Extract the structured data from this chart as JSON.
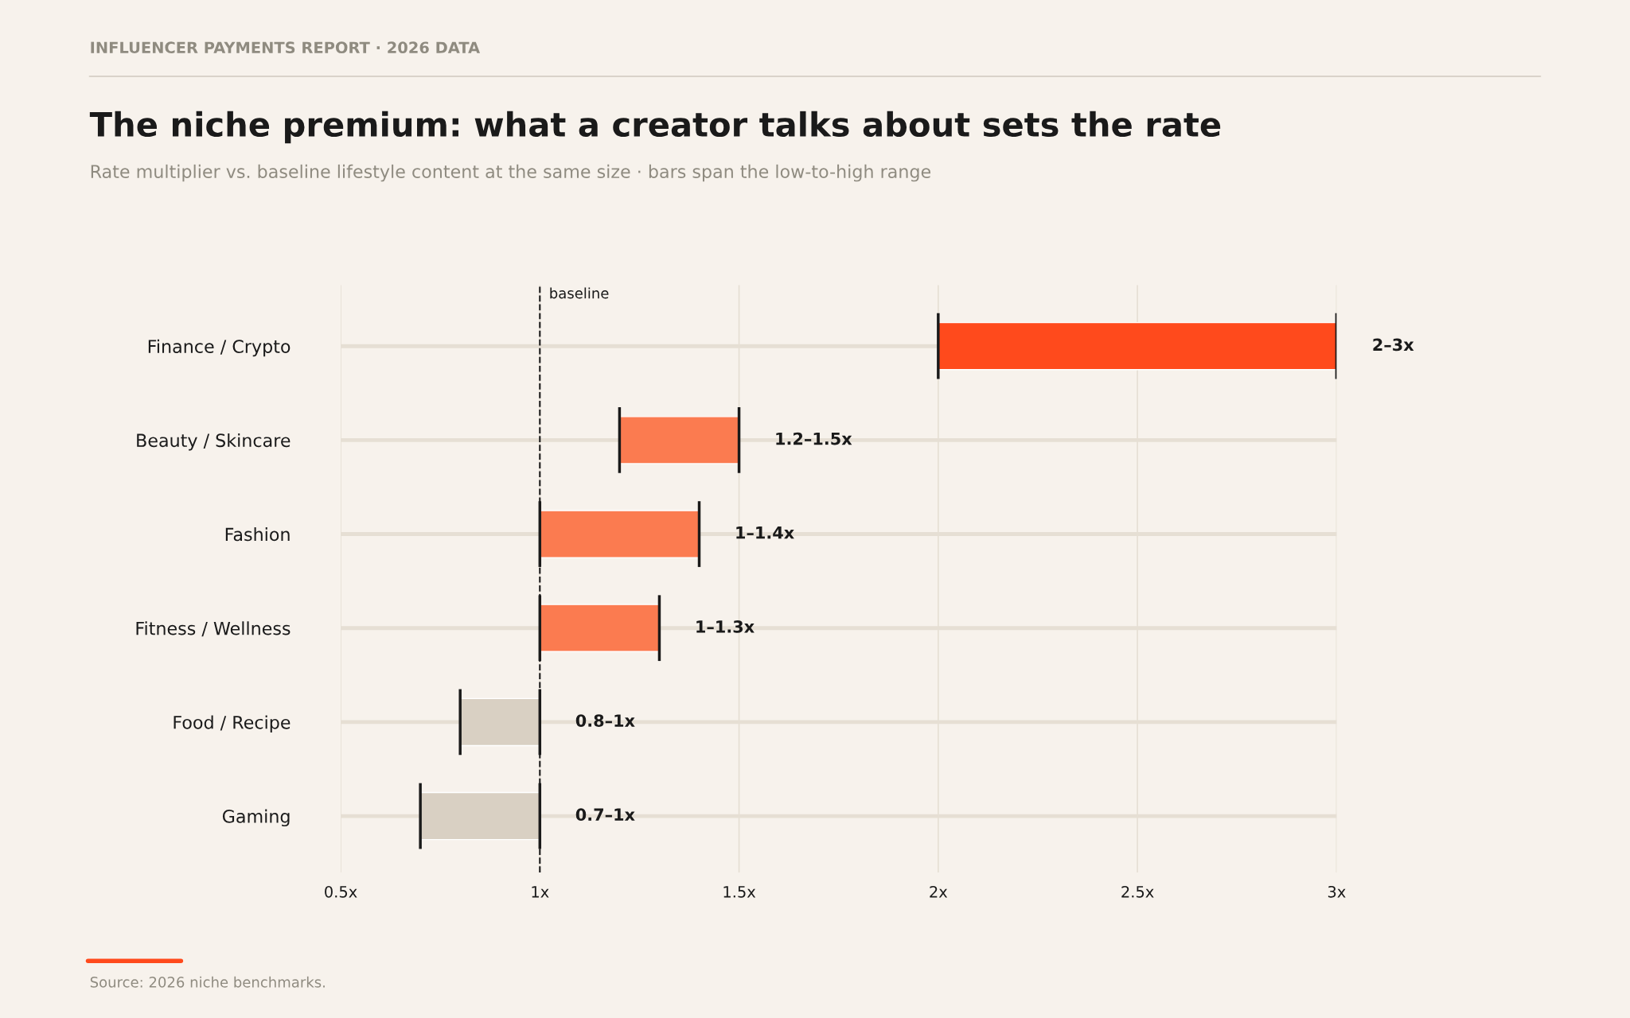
{
  "chart_data": {
    "type": "bar",
    "orientation": "horizontal",
    "title": "The niche premium: what a creator talks about sets the rate",
    "subtitle": "Rate multiplier vs. baseline lifestyle content at the same size · bars span the low-to-high range",
    "annotations": [
      "INFLUENCER PAYMENTS REPORT · 2026 DATA",
      "Source: 2026 niche benchmarks."
    ],
    "categories": [
      "Finance / Crypto",
      "Beauty / Skincare",
      "Fashion",
      "Fitness / Wellness",
      "Food / Recipe",
      "Gaming"
    ],
    "base": [
      2,
      1.2,
      1,
      1,
      0.8,
      0.7
    ],
    "values": [
      1,
      0.3,
      0.4,
      0.3,
      0.2,
      0.3
    ],
    "value_labels": [
      "2–3x",
      "1.2–1.5x",
      "1–1.4x",
      "1–1.3x",
      "0.8–1x",
      "0.7–1x"
    ],
    "colors": [
      "#ff4a1c",
      "#fb7b50",
      "#fb7b50",
      "#fb7b50",
      "#d9d0c3",
      "#d9d0c3"
    ],
    "xlim": [
      0.5,
      3
    ],
    "xticks": [
      {
        "value": 0.5,
        "label": "0.5x"
      },
      {
        "value": 1,
        "label": "1x"
      },
      {
        "value": 1.5,
        "label": "1.5x"
      },
      {
        "value": 2,
        "label": "2x"
      },
      {
        "value": 2.5,
        "label": "2.5x"
      },
      {
        "value": 3,
        "label": "3x"
      }
    ],
    "ref_lines": [
      {
        "axis": "x",
        "value": 1,
        "label": "baseline",
        "color": "#1a1a1a",
        "line_style": "dashed"
      }
    ],
    "grid": true
  }
}
